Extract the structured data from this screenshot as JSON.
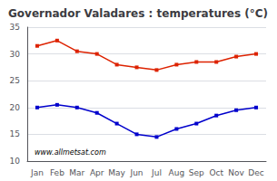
{
  "chart_data": {
    "type": "line",
    "title": "Governador Valadares : temperatures (°C)",
    "categories": [
      "Jan",
      "Feb",
      "Mar",
      "Apr",
      "May",
      "Jun",
      "Jul",
      "Aug",
      "Sep",
      "Oct",
      "Nov",
      "Dec"
    ],
    "series": [
      {
        "color": "#dd2200",
        "marker": "square",
        "values": [
          31.5,
          32.5,
          30.5,
          30.0,
          28.0,
          27.5,
          27.0,
          28.0,
          28.5,
          28.5,
          29.5,
          30.0
        ]
      },
      {
        "color": "#0000cc",
        "marker": "square",
        "values": [
          20.0,
          20.5,
          20.0,
          19.0,
          17.0,
          15.0,
          14.5,
          16.0,
          17.0,
          18.5,
          19.5,
          20.0
        ]
      }
    ],
    "ylim": [
      10,
      35
    ],
    "yticks": [
      10,
      15,
      20,
      25,
      30,
      35
    ],
    "grid": true,
    "annotations": [
      "www.allmetsat.com"
    ]
  }
}
